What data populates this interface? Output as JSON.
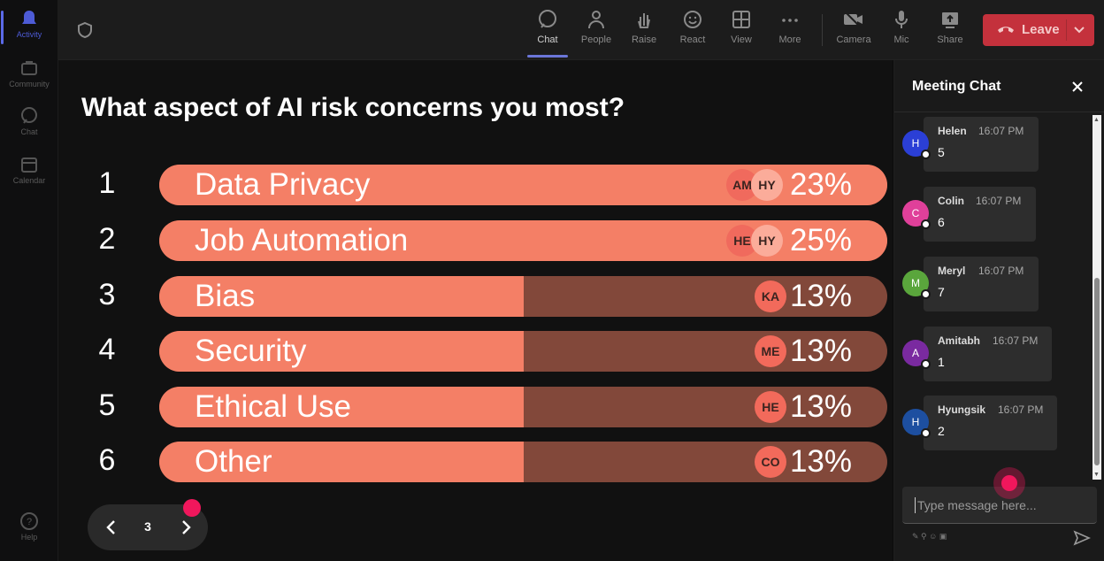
{
  "rail": {
    "items": [
      {
        "label": "Activity"
      },
      {
        "label": "Community"
      },
      {
        "label": "Chat"
      },
      {
        "label": "Calendar"
      },
      {
        "label": "Help"
      }
    ]
  },
  "toolbar": {
    "chat": "Chat",
    "people": "People",
    "raise": "Raise",
    "react": "React",
    "view": "View",
    "more": "More",
    "camera": "Camera",
    "mic": "Mic",
    "share": "Share",
    "leave": "Leave"
  },
  "poll": {
    "question": "What aspect of AI risk concerns you most?",
    "options": [
      {
        "rank": "1",
        "label": "Data Privacy",
        "percent_text": "23%",
        "percent": 23,
        "avatars": [
          "AM",
          "HY"
        ]
      },
      {
        "rank": "2",
        "label": "Job Automation",
        "percent_text": "25%",
        "percent": 25,
        "avatars": [
          "HE",
          "HY"
        ]
      },
      {
        "rank": "3",
        "label": "Bias",
        "percent_text": "13%",
        "percent": 13,
        "avatars": [
          "KA"
        ]
      },
      {
        "rank": "4",
        "label": "Security",
        "percent_text": "13%",
        "percent": 13,
        "avatars": [
          "ME"
        ]
      },
      {
        "rank": "5",
        "label": "Ethical Use",
        "percent_text": "13%",
        "percent": 13,
        "avatars": [
          "HE"
        ]
      },
      {
        "rank": "6",
        "label": "Other",
        "percent_text": "13%",
        "percent": 13,
        "avatars": [
          "CO"
        ]
      }
    ],
    "page": "3"
  },
  "chat": {
    "title": "Meeting Chat",
    "messages": [
      {
        "initial": "H",
        "name": "Helen",
        "time": "16:07 PM",
        "text": "5",
        "color": "#2b3fd6"
      },
      {
        "initial": "C",
        "name": "Colin",
        "time": "16:07 PM",
        "text": "6",
        "color": "#e0409a"
      },
      {
        "initial": "M",
        "name": "Meryl",
        "time": "16:07 PM",
        "text": "7",
        "color": "#5aa63c"
      },
      {
        "initial": "A",
        "name": "Amitabh",
        "time": "16:07 PM",
        "text": "1",
        "color": "#7a2aa0"
      },
      {
        "initial": "H",
        "name": "Hyungsik",
        "time": "16:07 PM",
        "text": "2",
        "color": "#1d4fa0"
      }
    ],
    "placeholder": "Type message here..."
  },
  "colors": {
    "bar_fill": "#f47f66",
    "bar_track": "#82483a",
    "leave": "#c4313c",
    "accent": "#5b6ae8",
    "cursor_dot": "#f0175c"
  }
}
